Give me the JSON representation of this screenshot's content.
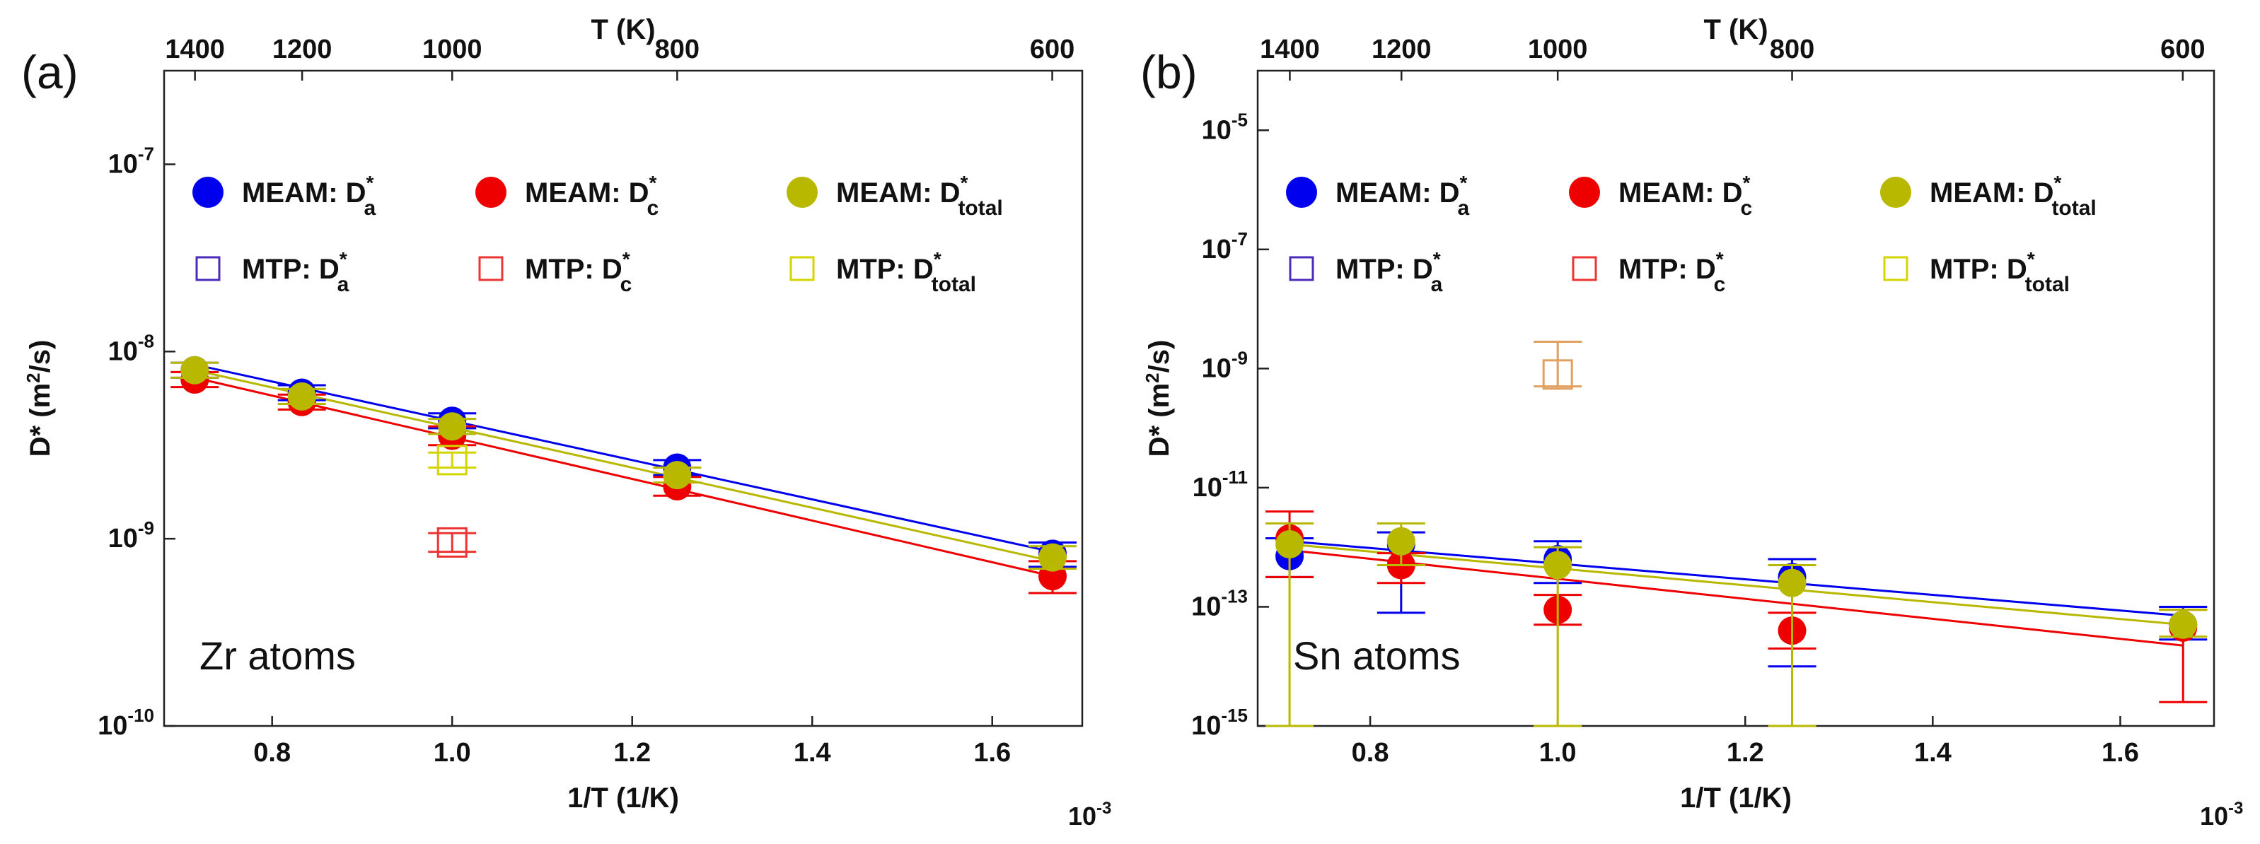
{
  "colors": {
    "Da": "#0000ee",
    "Dc": "#ee0000",
    "Dtotal": "#b8b800",
    "mtp_Da": "#4b2bb8",
    "mtp_Dc": "#ee3333",
    "mtp_Dtotal": "#d4d400",
    "mtp_Dtotal_err": "#e0a060"
  },
  "chart_data": [
    {
      "panel_label": "(a)",
      "type": "scatter",
      "annotation": "Zr atoms",
      "xlabel": "1/T (1/K)",
      "x_multiplier": "10",
      "x_multiplier_exp": "-3",
      "top_axis_label": "T (K)",
      "top_ticks": [
        "1400",
        "1200",
        "1000",
        "800",
        "600"
      ],
      "top_tick_values": [
        1400,
        1200,
        1000,
        800,
        600
      ],
      "ylabel": "D* (m",
      "ylabel_sup": "2",
      "ylabel_tail": "/s)",
      "x_ticks": [
        "0.8",
        "1.0",
        "1.2",
        "1.4",
        "1.6"
      ],
      "x_tick_values": [
        0.8,
        1.0,
        1.2,
        1.4,
        1.6
      ],
      "xlim": [
        0.68,
        1.7
      ],
      "ylim_log10": [
        -10,
        -6.5
      ],
      "y_ticks": [
        {
          "base": "10",
          "exp": "-10",
          "value": -10
        },
        {
          "base": "10",
          "exp": "-9",
          "value": -9
        },
        {
          "base": "10",
          "exp": "-8",
          "value": -8
        },
        {
          "base": "10",
          "exp": "-7",
          "value": -7
        }
      ],
      "legend": [
        {
          "name": "MEAM: D",
          "sub": "a",
          "sup": "*",
          "marker": "circle",
          "key": "Da"
        },
        {
          "name": "MEAM: D",
          "sub": "c",
          "sup": "*",
          "marker": "circle",
          "key": "Dc"
        },
        {
          "name": "MEAM: D",
          "sub": "total",
          "sup": "*",
          "marker": "circle",
          "key": "Dtotal"
        },
        {
          "name": "MTP: D",
          "sub": "a",
          "sup": "*",
          "marker": "square",
          "key": "mtp_Da"
        },
        {
          "name": "MTP: D",
          "sub": "c",
          "sup": "*",
          "marker": "square",
          "key": "mtp_Dc"
        },
        {
          "name": "MTP: D",
          "sub": "total",
          "sup": "*",
          "marker": "square",
          "key": "mtp_Dtotal"
        }
      ],
      "series": [
        {
          "name": "MEAM: Da*",
          "key": "Da",
          "marker": "circle",
          "x": [
            0.714,
            0.833,
            1.0,
            1.25,
            1.667
          ],
          "y_log10": [
            -8.1,
            -8.22,
            -8.37,
            -8.62,
            -9.08
          ],
          "err_lo": [
            -8.14,
            -8.26,
            -8.41,
            -8.66,
            -9.15
          ],
          "err_hi": [
            -8.06,
            -8.18,
            -8.33,
            -8.58,
            -9.02
          ]
        },
        {
          "name": "MEAM: Dc*",
          "key": "Dc",
          "marker": "circle",
          "x": [
            0.714,
            0.833,
            1.0,
            1.25,
            1.667
          ],
          "y_log10": [
            -8.15,
            -8.27,
            -8.45,
            -8.72,
            -9.2
          ],
          "err_lo": [
            -8.19,
            -8.31,
            -8.5,
            -8.77,
            -9.29
          ],
          "err_hi": [
            -8.11,
            -8.23,
            -8.4,
            -8.67,
            -9.12
          ]
        },
        {
          "name": "MEAM: Dtotal*",
          "key": "Dtotal",
          "marker": "circle",
          "x": [
            0.714,
            0.833,
            1.0,
            1.25,
            1.667
          ],
          "y_log10": [
            -8.1,
            -8.24,
            -8.4,
            -8.66,
            -9.1
          ],
          "err_lo": [
            -8.14,
            -8.28,
            -8.44,
            -8.7,
            -9.16
          ],
          "err_hi": [
            -8.06,
            -8.2,
            -8.36,
            -8.62,
            -9.04
          ]
        },
        {
          "name": "MTP: Dc*",
          "key": "mtp_Dc",
          "marker": "square",
          "x": [
            1.0
          ],
          "y_log10": [
            -9.02
          ],
          "err_lo": [
            -9.07
          ],
          "err_hi": [
            -8.97
          ]
        },
        {
          "name": "MTP: Dtotal*",
          "key": "mtp_Dtotal",
          "marker": "square",
          "x": [
            1.0
          ],
          "y_log10": [
            -8.58
          ],
          "err_lo": [
            -8.62
          ],
          "err_hi": [
            -8.54
          ]
        }
      ],
      "fit_lines": [
        {
          "key": "Da",
          "x": [
            0.714,
            1.667
          ],
          "y_log10": [
            -8.07,
            -9.07
          ]
        },
        {
          "key": "Dtotal",
          "x": [
            0.714,
            1.667
          ],
          "y_log10": [
            -8.1,
            -9.12
          ]
        },
        {
          "key": "Dc",
          "x": [
            0.714,
            1.667
          ],
          "y_log10": [
            -8.14,
            -9.2
          ]
        }
      ]
    },
    {
      "panel_label": "(b)",
      "type": "scatter",
      "annotation": "Sn atoms",
      "xlabel": "1/T (1/K)",
      "x_multiplier": "10",
      "x_multiplier_exp": "-3",
      "top_axis_label": "T (K)",
      "top_ticks": [
        "1400",
        "1200",
        "1000",
        "800",
        "600"
      ],
      "top_tick_values": [
        1400,
        1200,
        1000,
        800,
        600
      ],
      "ylabel": "D* (m",
      "ylabel_sup": "2",
      "ylabel_tail": "/s)",
      "x_ticks": [
        "0.8",
        "1.0",
        "1.2",
        "1.4",
        "1.6"
      ],
      "x_tick_values": [
        0.8,
        1.0,
        1.2,
        1.4,
        1.6
      ],
      "xlim": [
        0.68,
        1.7
      ],
      "ylim_log10": [
        -15,
        -4
      ],
      "y_ticks": [
        {
          "base": "10",
          "exp": "-15",
          "value": -15
        },
        {
          "base": "10",
          "exp": "-13",
          "value": -13
        },
        {
          "base": "10",
          "exp": "-11",
          "value": -11
        },
        {
          "base": "10",
          "exp": "-9",
          "value": -9
        },
        {
          "base": "10",
          "exp": "-7",
          "value": -7
        },
        {
          "base": "10",
          "exp": "-5",
          "value": -5
        }
      ],
      "legend": [
        {
          "name": "MEAM: D",
          "sub": "a",
          "sup": "*",
          "marker": "circle",
          "key": "Da"
        },
        {
          "name": "MEAM: D",
          "sub": "c",
          "sup": "*",
          "marker": "circle",
          "key": "Dc"
        },
        {
          "name": "MEAM: D",
          "sub": "total",
          "sup": "*",
          "marker": "circle",
          "key": "Dtotal"
        },
        {
          "name": "MTP: D",
          "sub": "a",
          "sup": "*",
          "marker": "square",
          "key": "mtp_Da"
        },
        {
          "name": "MTP: D",
          "sub": "c",
          "sup": "*",
          "marker": "square",
          "key": "mtp_Dc"
        },
        {
          "name": "MTP: D",
          "sub": "total",
          "sup": "*",
          "marker": "square",
          "key": "mtp_Dtotal"
        }
      ],
      "series": [
        {
          "name": "MEAM: Da*",
          "key": "Da",
          "marker": "circle",
          "x": [
            0.714,
            0.833,
            1.0,
            1.25,
            1.667
          ],
          "y_log10": [
            -12.15,
            -11.95,
            -12.2,
            -12.5,
            -13.3
          ],
          "err_lo": [
            -12.5,
            -13.1,
            -12.6,
            -14.0,
            -13.55
          ],
          "err_hi": [
            -11.85,
            -11.75,
            -11.9,
            -12.2,
            -13.0
          ]
        },
        {
          "name": "MEAM: Dc*",
          "key": "Dc",
          "marker": "circle",
          "x": [
            0.714,
            0.833,
            1.0,
            1.25,
            1.667
          ],
          "y_log10": [
            -11.85,
            -12.3,
            -13.05,
            -13.4,
            -13.35
          ],
          "err_lo": [
            -12.5,
            -12.6,
            -13.3,
            -13.7,
            -14.6
          ],
          "err_hi": [
            -11.4,
            -12.1,
            -12.8,
            -13.1,
            -13.05
          ]
        },
        {
          "name": "MEAM: Dtotal*",
          "key": "Dtotal",
          "marker": "circle",
          "x": [
            0.714,
            0.833,
            1.0,
            1.25,
            1.667
          ],
          "y_log10": [
            -11.95,
            -11.9,
            -12.3,
            -12.6,
            -13.3
          ],
          "err_lo": [
            -15,
            -12.3,
            -15,
            -15,
            -13.5
          ],
          "err_hi": [
            -11.6,
            -11.6,
            -12.0,
            -12.3,
            -13.05
          ]
        },
        {
          "name": "MTP: Dtotal*",
          "key": "mtp_Dtotal_err",
          "marker": "square",
          "x": [
            1.0
          ],
          "y_log10": [
            -9.1
          ],
          "err_lo": [
            -9.3
          ],
          "err_hi": [
            -8.55
          ]
        }
      ],
      "fit_lines": [
        {
          "key": "Da",
          "x": [
            0.714,
            1.667
          ],
          "y_log10": [
            -11.9,
            -13.15
          ]
        },
        {
          "key": "Dtotal",
          "x": [
            0.714,
            1.667
          ],
          "y_log10": [
            -11.95,
            -13.3
          ]
        },
        {
          "key": "Dc",
          "x": [
            0.714,
            1.667
          ],
          "y_log10": [
            -12.05,
            -13.65
          ]
        }
      ]
    }
  ]
}
